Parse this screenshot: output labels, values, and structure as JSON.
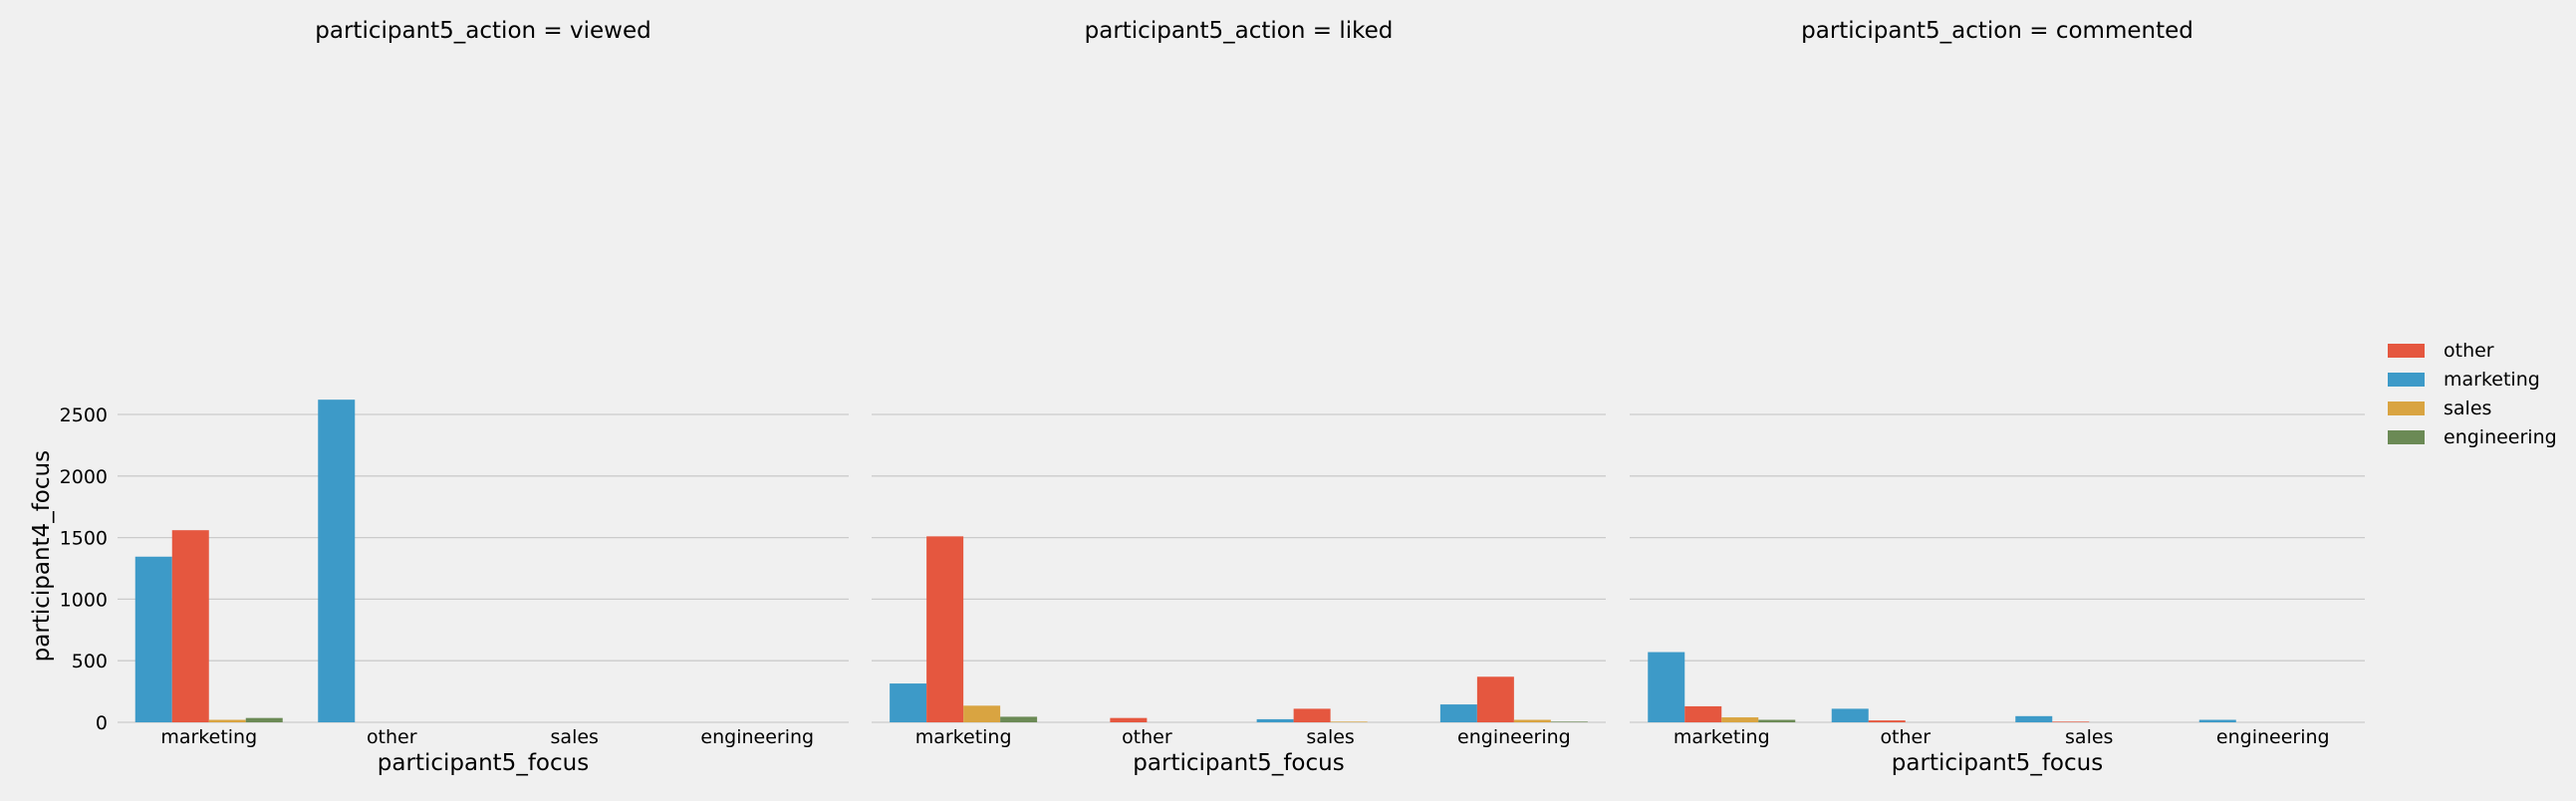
{
  "chart_data": {
    "type": "bar",
    "ylabel": "participant4_focus",
    "ylim": [
      0,
      2700
    ],
    "yticks": [
      0,
      500,
      1000,
      1500,
      2000,
      2500
    ],
    "grid": true,
    "legend": {
      "placement": "right",
      "items": [
        {
          "name": "other",
          "color": "#e5573f"
        },
        {
          "name": "marketing",
          "color": "#3d9ac8"
        },
        {
          "name": "sales",
          "color": "#d9a441"
        },
        {
          "name": "engineering",
          "color": "#6b8a55"
        }
      ]
    },
    "facets": [
      {
        "title": "participant5_action = viewed",
        "xlabel": "participant5_focus",
        "categories": [
          "marketing",
          "other",
          "sales",
          "engineering"
        ],
        "series": [
          {
            "name": "marketing",
            "values": [
              1345,
              2620,
              0,
              0
            ]
          },
          {
            "name": "other",
            "values": [
              1560,
              0,
              0,
              0
            ]
          },
          {
            "name": "sales",
            "values": [
              20,
              0,
              0,
              0
            ]
          },
          {
            "name": "engineering",
            "values": [
              35,
              0,
              0,
              0
            ]
          }
        ]
      },
      {
        "title": "participant5_action = liked",
        "xlabel": "participant5_focus",
        "categories": [
          "marketing",
          "other",
          "sales",
          "engineering"
        ],
        "series": [
          {
            "name": "marketing",
            "values": [
              315,
              0,
              25,
              145
            ]
          },
          {
            "name": "other",
            "values": [
              1510,
              35,
              110,
              370
            ]
          },
          {
            "name": "sales",
            "values": [
              135,
              0,
              5,
              20
            ]
          },
          {
            "name": "engineering",
            "values": [
              45,
              0,
              0,
              5
            ]
          }
        ]
      },
      {
        "title": "participant5_action = commented",
        "xlabel": "participant5_focus",
        "categories": [
          "marketing",
          "other",
          "sales",
          "engineering"
        ],
        "series": [
          {
            "name": "marketing",
            "values": [
              570,
              110,
              50,
              20
            ]
          },
          {
            "name": "other",
            "values": [
              130,
              15,
              5,
              0
            ]
          },
          {
            "name": "sales",
            "values": [
              40,
              0,
              0,
              0
            ]
          },
          {
            "name": "engineering",
            "values": [
              20,
              0,
              0,
              0
            ]
          }
        ]
      }
    ]
  }
}
